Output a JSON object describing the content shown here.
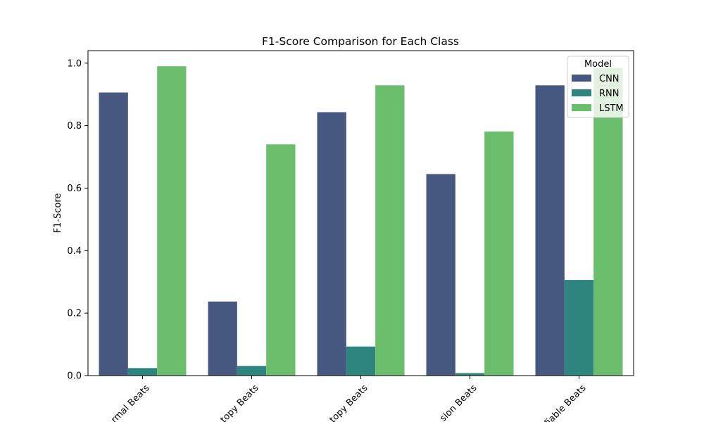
{
  "chart_data": {
    "type": "bar",
    "title": "F1-Score Comparison for Each Class",
    "xlabel": "",
    "ylabel": "F1-Score",
    "ylim": [
      0,
      1.04
    ],
    "yticks": [
      0.0,
      0.2,
      0.4,
      0.6,
      0.8,
      1.0
    ],
    "ytick_labels": [
      "0.0",
      "0.2",
      "0.4",
      "0.6",
      "0.8",
      "1.0"
    ],
    "categories": [
      "rmal Beats",
      "topy Beats",
      "topy Beats",
      "sion Beats",
      "fiable Beats"
    ],
    "series": [
      {
        "name": "CNN",
        "color": "#46587f",
        "values": [
          0.906,
          0.237,
          0.843,
          0.645,
          0.929
        ]
      },
      {
        "name": "RNN",
        "color": "#2e857f",
        "values": [
          0.024,
          0.031,
          0.093,
          0.008,
          0.306
        ]
      },
      {
        "name": "LSTM",
        "color": "#6abe6b",
        "values": [
          0.99,
          0.74,
          0.929,
          0.781,
          0.985
        ]
      }
    ],
    "legend": {
      "title": "Model",
      "position": "top-right"
    },
    "grid": false
  }
}
